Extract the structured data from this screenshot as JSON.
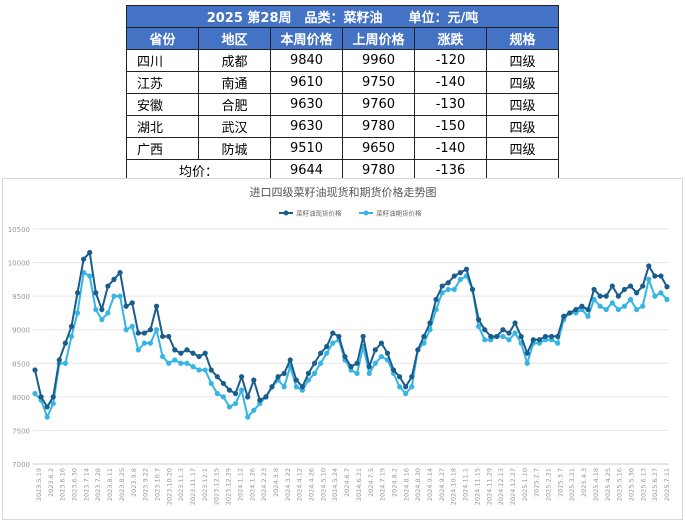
{
  "table": {
    "title": "2025 第28周　品类：菜籽油　　单位：元/吨",
    "headers": [
      "省份",
      "地区",
      "本周价格",
      "上周价格",
      "涨跌",
      "规格"
    ],
    "rows": [
      [
        "四川",
        "成都",
        "9840",
        "9960",
        "-120",
        "四级"
      ],
      [
        "江苏",
        "南通",
        "9610",
        "9750",
        "-140",
        "四级"
      ],
      [
        "安徽",
        "合肥",
        "9630",
        "9760",
        "-130",
        "四级"
      ],
      [
        "湖北",
        "武汉",
        "9630",
        "9780",
        "-150",
        "四级"
      ],
      [
        "广西",
        "防城",
        "9510",
        "9650",
        "-140",
        "四级"
      ]
    ],
    "average": {
      "label": "均价：",
      "this_week": "9644",
      "last_week": "9780",
      "change": "-136"
    }
  },
  "chart_data": {
    "type": "line",
    "title": "进口四级菜籽油现货和期货价格走势图",
    "legend_position": "top-center",
    "grid": true,
    "xlabel": "",
    "ylabel": "",
    "ylim": [
      7000,
      10500
    ],
    "yticks": [
      7000,
      7500,
      8000,
      8500,
      9000,
      9500,
      10000,
      10500
    ],
    "xtick_labels": [
      "2023.5.19",
      "2023.6.2",
      "2023.6.16",
      "2023.6.30",
      "2023.7.14",
      "2023.7.28",
      "2023.8.11",
      "2023.8.25",
      "2023.9.8",
      "2023.9.22",
      "2023.10.7",
      "2023.10.20",
      "2023.11.3",
      "2023.11.17",
      "2023.12.1",
      "2023.12.15",
      "2023.12.29",
      "2024.1.12",
      "2024.1.26",
      "2024.2.23",
      "2024.3.8",
      "2024.3.22",
      "2024.4.12",
      "2024.4.26",
      "2024.5.10",
      "2024.5.24",
      "2024.6.7",
      "2024.6.21",
      "2024.7.5",
      "2024.7.19",
      "2024.8.2",
      "2024.8.16",
      "2024.8.30",
      "2024.9.14",
      "2024.9.27",
      "2024.10.18",
      "2024.11.1",
      "2024.11.15",
      "2024.11.29",
      "2024.12.13",
      "2024.12.27",
      "2025.1.10",
      "2025.2.7",
      "2025.2.21",
      "2025.3.7",
      "2025.3.21",
      "2025.4.3",
      "2025.4.18",
      "2025.4.25",
      "2025.5.16",
      "2025.5.30",
      "2025.6.13",
      "2025.6.27",
      "2025.7.11"
    ],
    "series": [
      {
        "name": "菜籽油现货价格",
        "color": "#1a5d8a",
        "values": [
          8400,
          8000,
          7850,
          8000,
          8550,
          8800,
          9050,
          9550,
          10050,
          10150,
          9550,
          9300,
          9650,
          9750,
          9850,
          9350,
          9400,
          8950,
          8950,
          9000,
          9350,
          8900,
          8900,
          8700,
          8650,
          8700,
          8650,
          8600,
          8650,
          8400,
          8300,
          8200,
          8100,
          8050,
          8300,
          8000,
          8250,
          7950,
          8000,
          8150,
          8300,
          8350,
          8550,
          8250,
          8150,
          8350,
          8500,
          8650,
          8750,
          8950,
          8900,
          8600,
          8450,
          8500,
          8900,
          8450,
          8700,
          8800,
          8650,
          8400,
          8300,
          8150,
          8300,
          8700,
          8900,
          9100,
          9450,
          9650,
          9700,
          9800,
          9850,
          9900,
          9600,
          9150,
          9000,
          8900,
          8900,
          9000,
          8950,
          9100,
          8900,
          8650,
          8850,
          8850,
          8900,
          8900,
          8900,
          9200,
          9250,
          9300,
          9350,
          9300,
          9600,
          9500,
          9500,
          9650,
          9500,
          9600,
          9650,
          9550,
          9650,
          9950,
          9800,
          9800,
          9640
        ]
      },
      {
        "name": "菜籽油期货价格",
        "color": "#36b5e5",
        "values": [
          8050,
          7950,
          7700,
          7900,
          8500,
          8500,
          8900,
          9250,
          9850,
          9800,
          9300,
          9150,
          9250,
          9500,
          9500,
          9000,
          9050,
          8700,
          8800,
          8800,
          9000,
          8600,
          8500,
          8550,
          8500,
          8500,
          8450,
          8400,
          8400,
          8200,
          8050,
          8000,
          7850,
          7900,
          8100,
          7700,
          7800,
          7900,
          8000,
          8150,
          8250,
          8150,
          8450,
          8150,
          8100,
          8250,
          8350,
          8500,
          8650,
          8800,
          8850,
          8550,
          8400,
          8350,
          8750,
          8350,
          8500,
          8600,
          8550,
          8350,
          8150,
          8050,
          8150,
          8700,
          8800,
          9000,
          9300,
          9550,
          9600,
          9600,
          9750,
          9800,
          9600,
          9050,
          8850,
          8850,
          8900,
          8900,
          8850,
          8950,
          8800,
          8500,
          8800,
          8800,
          8850,
          8850,
          8800,
          9150,
          9250,
          9250,
          9300,
          9200,
          9450,
          9350,
          9300,
          9400,
          9300,
          9350,
          9450,
          9300,
          9350,
          9750,
          9500,
          9550,
          9450
        ]
      }
    ]
  }
}
